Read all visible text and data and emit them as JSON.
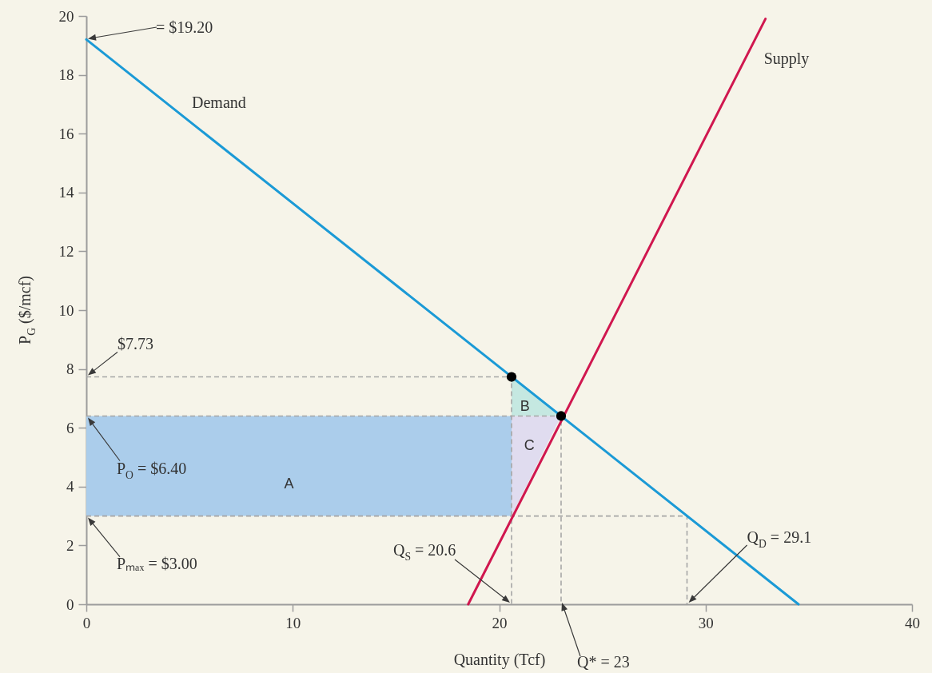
{
  "chart_data": {
    "type": "line",
    "xlabel": "Quantity (Tcf)",
    "ylabel": "P$_{G}$ ($/mcf)",
    "xlim": [
      0,
      40
    ],
    "ylim": [
      0,
      20
    ],
    "xticks": [
      0,
      10,
      20,
      30,
      40
    ],
    "yticks": [
      0,
      2,
      4,
      6,
      8,
      10,
      12,
      14,
      16,
      18,
      20
    ],
    "series": [
      {
        "color": "#abcdeb",
        "x": [
          0,
          20.6
        ],
        "values": [
          null,
          null
        ],
        "lower": [
          3.0,
          3.0
        ],
        "upper": [
          6.4,
          6.4
        ]
      },
      {
        "color": "#c5e8e1",
        "x": [
          20.6,
          23
        ],
        "values": [
          null,
          null
        ],
        "lower": [
          6.4,
          6.4
        ],
        "upper": [
          7.73,
          6.4
        ]
      },
      {
        "color": "#e0dcef",
        "x": [
          20.6,
          23
        ],
        "values": [
          null,
          null
        ],
        "lower": [
          3.0,
          6.4
        ],
        "upper": [
          6.4,
          6.4
        ]
      },
      {
        "line_style": "dashed",
        "color": "#a6a6a6",
        "x": [
          0,
          20.6,
          20.6
        ],
        "values": [
          7.73,
          7.73,
          0
        ]
      },
      {
        "line_style": "dashed",
        "color": "#a6a6a6",
        "x": [
          0,
          23,
          23
        ],
        "values": [
          6.4,
          6.4,
          0
        ]
      },
      {
        "line_style": "dashed",
        "color": "#a6a6a6",
        "x": [
          0,
          29.1,
          29.1
        ],
        "values": [
          3.0,
          3.0,
          0
        ]
      },
      {
        "name": "Demand",
        "line_style": "solid",
        "color": "#1b9ad6",
        "x": [
          0,
          34.5
        ],
        "values": [
          19.2,
          0
        ]
      },
      {
        "name": "Supply",
        "line_style": "solid",
        "color": "#d0174f",
        "x": [
          18.5,
          32.9
        ],
        "values": [
          0,
          19.9
        ]
      },
      {
        "type": "scatter",
        "marker": "circle",
        "color": "#000000",
        "x": [
          20.6,
          23
        ],
        "values": [
          7.73,
          6.4
        ]
      }
    ],
    "annotations": [
      "= $19.20",
      {
        "text": "$7.73",
        "x": 0,
        "y": 7.73
      },
      "P$_{O}$ = $6.40",
      "Pₘₐₓ = $3.00",
      "Q$_{S}$ = 20.6",
      "Q* = 23",
      "Q$_{D}$ = 29.1",
      "A",
      "B",
      "C"
    ]
  }
}
